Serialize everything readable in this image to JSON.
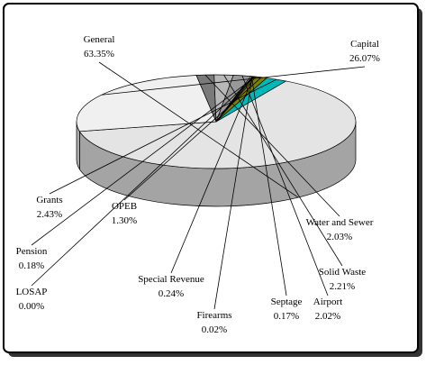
{
  "chart_data": {
    "type": "pie",
    "categories": [
      "General",
      "Capital",
      "Water and Sewer",
      "Solid Waste",
      "Airport",
      "Septage",
      "Firearms",
      "Special Revenue",
      "LOSAP",
      "Pension",
      "OPEB",
      "Grants"
    ],
    "values": [
      63.35,
      26.07,
      2.03,
      2.21,
      2.02,
      0.17,
      0.02,
      0.24,
      0.0,
      0.18,
      1.3,
      2.43
    ],
    "value_labels": [
      "63.35%",
      "26.07%",
      "2.03%",
      "2.21%",
      "2.02%",
      "0.17%",
      "0.02%",
      "0.24%",
      "0.00%",
      "0.18%",
      "1.30%",
      "2.43%"
    ],
    "colors": [
      "#e4e4e4",
      "#f0f0f0",
      "#7a7a7a",
      "#b8b8b8",
      "#999999",
      "#ffffff",
      "#111111",
      "#444444",
      "#666666",
      "#ffff33",
      "#808000",
      "#00b8b8"
    ]
  }
}
